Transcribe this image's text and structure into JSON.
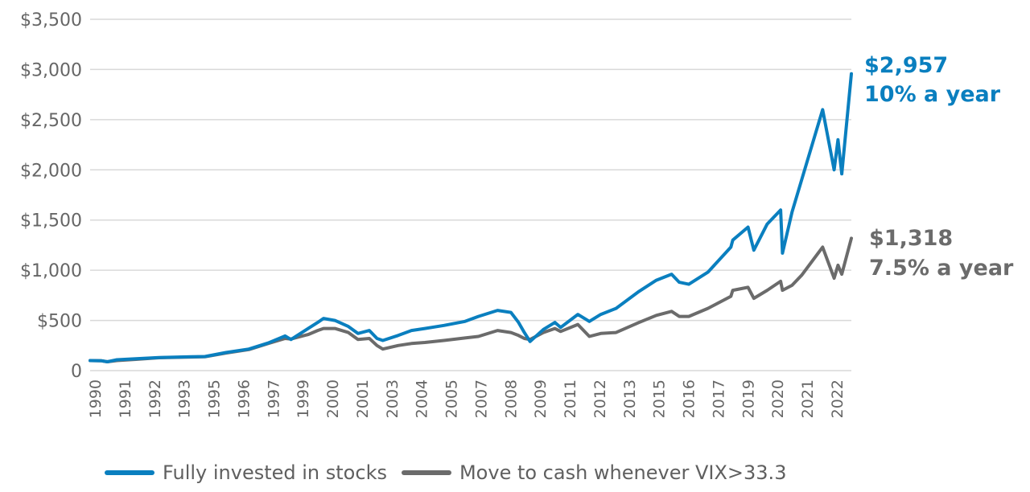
{
  "chart_data": {
    "type": "line",
    "title": "",
    "xlabel": "",
    "ylabel": "",
    "ylim": [
      0,
      3500
    ],
    "xlim": [
      "1990-01",
      "2023-03"
    ],
    "grid": "horizontal",
    "legend_position": "bottom",
    "y_ticks": [
      {
        "value": 0,
        "label": "0"
      },
      {
        "value": 500,
        "label": "$500"
      },
      {
        "value": 1000,
        "label": "$1,000"
      },
      {
        "value": 1500,
        "label": "$1,500"
      },
      {
        "value": 2000,
        "label": "$2,000"
      },
      {
        "value": 2500,
        "label": "$2,500"
      },
      {
        "value": 3000,
        "label": "$3,000"
      },
      {
        "value": 3500,
        "label": "$3,500"
      }
    ],
    "x_tick_labels": [
      "1990",
      "1991",
      "1992",
      "1993",
      "1995",
      "1996",
      "1997",
      "1999",
      "2000",
      "2001",
      "2003",
      "2004",
      "2005",
      "2007",
      "2008",
      "2009",
      "2011",
      "2012",
      "2013",
      "2015",
      "2016",
      "2017",
      "2019",
      "2020",
      "2021",
      "2022"
    ],
    "series": [
      {
        "name": "Fully invested in stocks",
        "color": "#0a7fbf",
        "end_value_label": "$2,957",
        "end_rate_label": "10% a year",
        "points": [
          [
            "1990-01",
            100
          ],
          [
            "1990-07",
            98
          ],
          [
            "1990-10",
            88
          ],
          [
            "1991-03",
            108
          ],
          [
            "1992-01",
            118
          ],
          [
            "1993-01",
            130
          ],
          [
            "1994-06",
            138
          ],
          [
            "1995-01",
            140
          ],
          [
            "1995-12",
            180
          ],
          [
            "1996-12",
            215
          ],
          [
            "1997-10",
            275
          ],
          [
            "1998-07",
            345
          ],
          [
            "1998-10",
            310
          ],
          [
            "1999-07",
            420
          ],
          [
            "1999-12",
            480
          ],
          [
            "2000-03",
            520
          ],
          [
            "2000-09",
            500
          ],
          [
            "2001-04",
            440
          ],
          [
            "2001-09",
            370
          ],
          [
            "2002-03",
            400
          ],
          [
            "2002-07",
            320
          ],
          [
            "2002-10",
            300
          ],
          [
            "2003-06",
            350
          ],
          [
            "2004-01",
            400
          ],
          [
            "2004-08",
            420
          ],
          [
            "2005-06",
            450
          ],
          [
            "2006-05",
            490
          ],
          [
            "2006-12",
            540
          ],
          [
            "2007-10",
            600
          ],
          [
            "2008-05",
            580
          ],
          [
            "2008-09",
            480
          ],
          [
            "2008-12",
            380
          ],
          [
            "2009-03",
            290
          ],
          [
            "2009-10",
            410
          ],
          [
            "2010-04",
            480
          ],
          [
            "2010-07",
            430
          ],
          [
            "2011-04",
            560
          ],
          [
            "2011-10",
            490
          ],
          [
            "2012-04",
            560
          ],
          [
            "2012-12",
            620
          ],
          [
            "2013-12",
            790
          ],
          [
            "2014-09",
            900
          ],
          [
            "2015-05",
            960
          ],
          [
            "2015-09",
            880
          ],
          [
            "2016-02",
            860
          ],
          [
            "2016-12",
            980
          ],
          [
            "2017-12",
            1230
          ],
          [
            "2018-01",
            1300
          ],
          [
            "2018-09",
            1430
          ],
          [
            "2018-12",
            1200
          ],
          [
            "2019-07",
            1460
          ],
          [
            "2020-02",
            1600
          ],
          [
            "2020-03",
            1170
          ],
          [
            "2020-08",
            1580
          ],
          [
            "2021-01",
            1900
          ],
          [
            "2021-12",
            2600
          ],
          [
            "2022-06",
            2000
          ],
          [
            "2022-08",
            2300
          ],
          [
            "2022-10",
            1960
          ],
          [
            "2023-03",
            2957
          ]
        ]
      },
      {
        "name": "Move to cash whenever VIX>33.3",
        "color": "#6b6b6b",
        "end_value_label": "$1,318",
        "end_rate_label": "7.5% a year",
        "points": [
          [
            "1990-01",
            100
          ],
          [
            "1990-07",
            98
          ],
          [
            "1990-10",
            88
          ],
          [
            "1991-03",
            100
          ],
          [
            "1992-01",
            112
          ],
          [
            "1993-01",
            128
          ],
          [
            "1994-06",
            135
          ],
          [
            "1995-01",
            138
          ],
          [
            "1995-12",
            175
          ],
          [
            "1996-12",
            210
          ],
          [
            "1997-10",
            270
          ],
          [
            "1998-07",
            320
          ],
          [
            "1998-10",
            315
          ],
          [
            "1999-07",
            360
          ],
          [
            "1999-12",
            400
          ],
          [
            "2000-03",
            420
          ],
          [
            "2000-09",
            420
          ],
          [
            "2001-04",
            380
          ],
          [
            "2001-09",
            310
          ],
          [
            "2002-03",
            320
          ],
          [
            "2002-07",
            250
          ],
          [
            "2002-10",
            215
          ],
          [
            "2003-06",
            250
          ],
          [
            "2004-01",
            270
          ],
          [
            "2004-08",
            280
          ],
          [
            "2005-06",
            300
          ],
          [
            "2006-05",
            325
          ],
          [
            "2006-12",
            340
          ],
          [
            "2007-10",
            400
          ],
          [
            "2008-05",
            380
          ],
          [
            "2008-09",
            350
          ],
          [
            "2008-12",
            320
          ],
          [
            "2009-03",
            310
          ],
          [
            "2009-10",
            380
          ],
          [
            "2010-04",
            420
          ],
          [
            "2010-07",
            390
          ],
          [
            "2011-04",
            460
          ],
          [
            "2011-10",
            340
          ],
          [
            "2012-04",
            370
          ],
          [
            "2012-12",
            380
          ],
          [
            "2013-12",
            480
          ],
          [
            "2014-09",
            550
          ],
          [
            "2015-05",
            590
          ],
          [
            "2015-09",
            540
          ],
          [
            "2016-02",
            540
          ],
          [
            "2016-12",
            620
          ],
          [
            "2017-12",
            740
          ],
          [
            "2018-01",
            800
          ],
          [
            "2018-09",
            830
          ],
          [
            "2018-12",
            720
          ],
          [
            "2019-07",
            800
          ],
          [
            "2020-02",
            890
          ],
          [
            "2020-03",
            800
          ],
          [
            "2020-08",
            850
          ],
          [
            "2021-01",
            950
          ],
          [
            "2021-12",
            1230
          ],
          [
            "2022-06",
            920
          ],
          [
            "2022-08",
            1050
          ],
          [
            "2022-10",
            960
          ],
          [
            "2023-03",
            1318
          ]
        ]
      }
    ]
  }
}
